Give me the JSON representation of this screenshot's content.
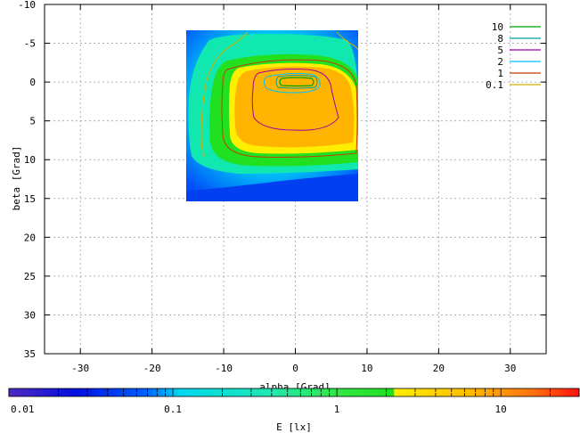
{
  "chart_data": {
    "type": "heatmap",
    "xlabel": "alpha [Grad]",
    "ylabel": "beta [Grad]",
    "xlim": [
      -35,
      35
    ],
    "ylim": [
      -10,
      35
    ],
    "y_inverted": true,
    "grid": true,
    "x_ticks": [
      "-30",
      "-20",
      "-10",
      "0",
      "10",
      "20",
      "30"
    ],
    "y_ticks": [
      "-10",
      "-5",
      "0",
      "5",
      "10",
      "15",
      "20",
      "25",
      "30",
      "35"
    ],
    "data_extent": {
      "alpha": [
        -15,
        9
      ],
      "beta": [
        -6.5,
        15.5
      ]
    },
    "contour_legend": {
      "placement": "top-right",
      "levels": [
        {
          "label": "10",
          "color": "#00a000"
        },
        {
          "label": "8",
          "color": "#00a0a0"
        },
        {
          "label": "5",
          "color": "#a000a0"
        },
        {
          "label": "2",
          "color": "#00c0ff"
        },
        {
          "label": "1",
          "color": "#c04000"
        },
        {
          "label": "0.1",
          "color": "#d0b000"
        }
      ]
    },
    "colorbar": {
      "label": "E [lx]",
      "scale": "log",
      "range": [
        0.01,
        30
      ],
      "tick_labels": [
        "0.01",
        "0.1",
        "1",
        "10"
      ]
    }
  }
}
